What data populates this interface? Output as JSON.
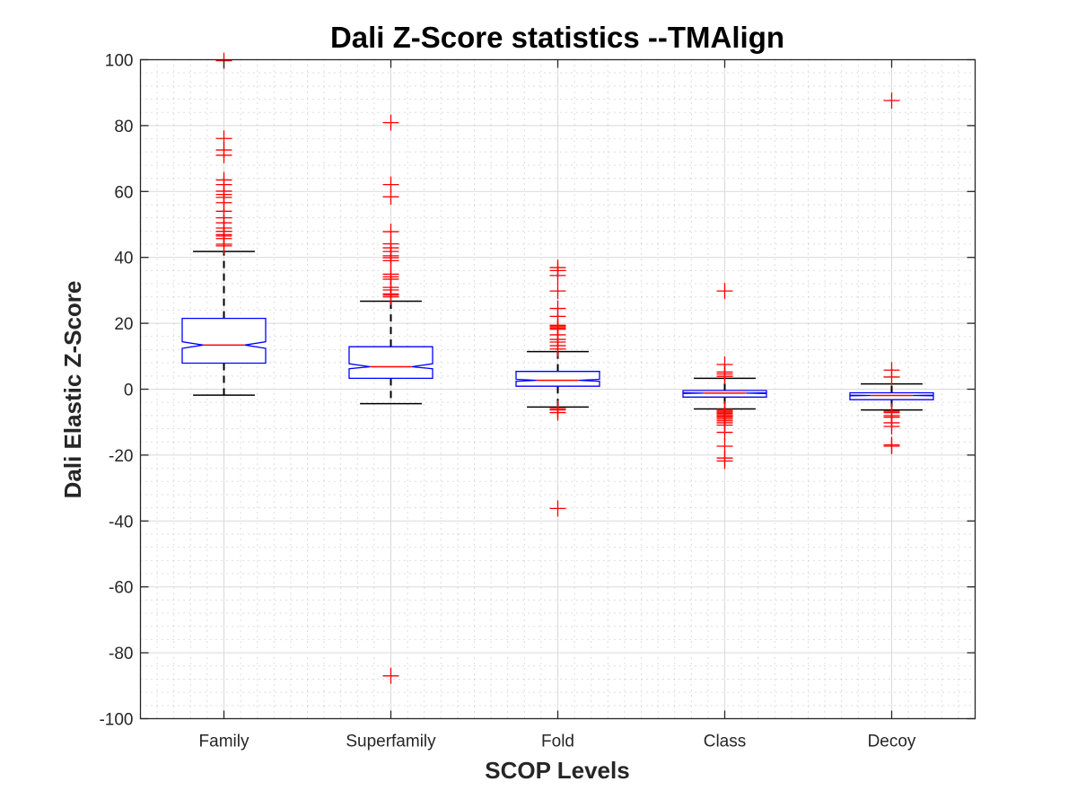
{
  "chart_data": {
    "type": "boxplot",
    "title": "Dali Z-Score statistics --TMAlign",
    "xlabel": "SCOP Levels",
    "ylabel": "Dali Elastic Z-Score",
    "ylim": [
      -100,
      100
    ],
    "yticks": [
      -100,
      -80,
      -60,
      -40,
      -20,
      0,
      20,
      40,
      60,
      80,
      100
    ],
    "ytick_labels": [
      "-100",
      "-80",
      "-60",
      "-40",
      "-20",
      "0",
      "20",
      "40",
      "60",
      "80",
      "100"
    ],
    "grid": "major and minor",
    "notched": true,
    "categories": [
      "Family",
      "Superfamily",
      "Fold",
      "Class",
      "Decoy"
    ],
    "colors": {
      "box": "#0000ff",
      "median": "#ff0000",
      "whisker": "#000000",
      "outlier": "#ff0000",
      "grid": "#d9d9d9",
      "axis": "#262626"
    },
    "boxes": [
      {
        "name": "Family",
        "q1": 7.9,
        "median": 13.4,
        "q3": 21.5,
        "notch_low": 12.4,
        "notch_high": 14.4,
        "whisker_low": -1.8,
        "whisker_high": 41.8,
        "outliers": [
          99.7,
          76.1,
          72.6,
          71.0,
          63.5,
          62.1,
          60.1,
          59.1,
          58.2,
          56.6,
          54.0,
          52.0,
          50.5,
          48.9,
          47.9,
          46.9,
          46.5,
          45.7,
          44.0,
          43.5
        ]
      },
      {
        "name": "Superfamily",
        "q1": 3.3,
        "median": 6.8,
        "q3": 12.9,
        "notch_low": 6.2,
        "notch_high": 7.7,
        "whisker_low": -4.4,
        "whisker_high": 26.7,
        "outliers": [
          80.9,
          62.1,
          58.4,
          47.8,
          44.1,
          42.9,
          41.8,
          40.5,
          39.9,
          39.0,
          34.9,
          34.1,
          33.4,
          30.9,
          30.1,
          28.9,
          28.5,
          28.0,
          -87.0
        ]
      },
      {
        "name": "Fold",
        "q1": 0.9,
        "median": 2.7,
        "q3": 5.4,
        "notch_low": 2.4,
        "notch_high": 3.0,
        "whisker_low": -5.4,
        "whisker_high": 11.4,
        "outliers": [
          36.9,
          36.0,
          34.5,
          29.8,
          24.5,
          22.1,
          19.4,
          19.0,
          18.6,
          18.2,
          16.5,
          15.1,
          14.3,
          13.2,
          12.2,
          -5.9,
          -6.3,
          -7.1,
          -36.2
        ]
      },
      {
        "name": "Class",
        "q1": -2.4,
        "median": -1.2,
        "q3": -0.4,
        "notch_low": -1.3,
        "notch_high": -1.1,
        "whisker_low": -6.0,
        "whisker_high": 3.3,
        "outliers": [
          29.8,
          7.5,
          5.2,
          4.6,
          3.9,
          -6.2,
          -6.6,
          -7.0,
          -7.4,
          -7.8,
          -8.2,
          -8.6,
          -9.1,
          -9.6,
          -10.2,
          -10.9,
          -13.1,
          -17.3,
          -20.9,
          -21.8
        ]
      },
      {
        "name": "Decoy",
        "q1": -3.2,
        "median": -1.9,
        "q3": -1.1,
        "notch_low": -2.0,
        "notch_high": -1.8,
        "whisker_low": -6.3,
        "whisker_high": 1.6,
        "outliers": [
          87.6,
          5.8,
          3.7,
          -6.7,
          -7.1,
          -8.0,
          -8.5,
          -10.2,
          -11.3,
          -16.9,
          -17.3
        ]
      }
    ]
  }
}
